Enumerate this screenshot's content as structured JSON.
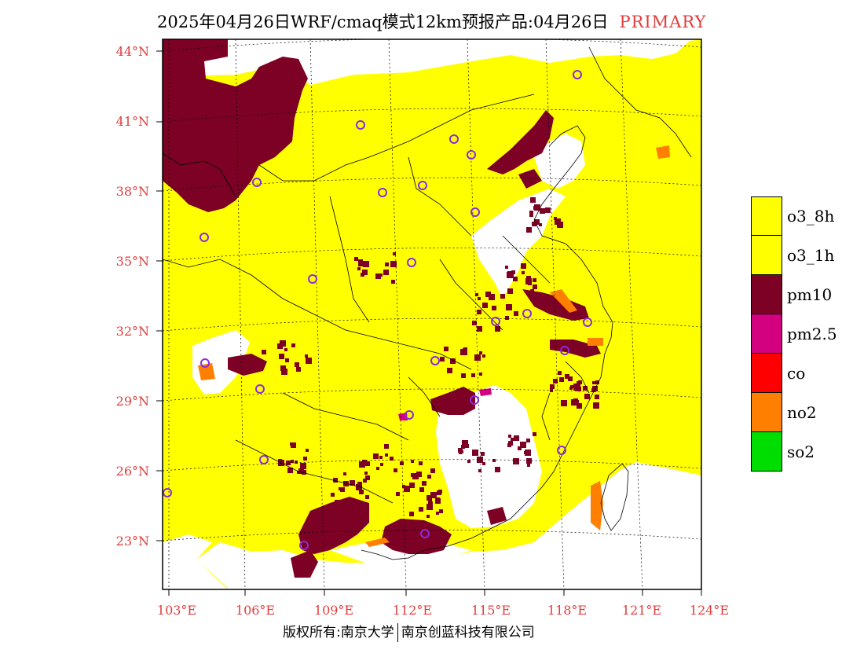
{
  "header": {
    "title": "2025年04月26日WRF/cmaq模式12km预报产品:04月26日",
    "tag": "PRIMARY"
  },
  "map": {
    "lat_labels": [
      "44°N",
      "41°N",
      "38°N",
      "35°N",
      "32°N",
      "29°N",
      "26°N",
      "23°N"
    ],
    "lon_labels": [
      "103°E",
      "106°E",
      "109°E",
      "112°E",
      "115°E",
      "118°E",
      "121°E",
      "124°E"
    ],
    "colors": {
      "o3": "#ffff00",
      "pm10": "#7d0025",
      "pm25": "#d3007f",
      "co": "#ff0000",
      "no2": "#ff7f00",
      "so2": "#00dd00",
      "clean": "#ffffff",
      "axis_label": "#e23c3c",
      "city_marker": "#8a2be2"
    },
    "city_marker_icon": "circle-icon"
  },
  "legend": {
    "items": [
      {
        "label": "o3_8h",
        "color": "#ffff00"
      },
      {
        "label": "o3_1h",
        "color": "#ffff00"
      },
      {
        "label": "pm10",
        "color": "#7d0025"
      },
      {
        "label": "pm2.5",
        "color": "#d3007f"
      },
      {
        "label": "co",
        "color": "#ff0000"
      },
      {
        "label": "no2",
        "color": "#ff7f00"
      },
      {
        "label": "so2",
        "color": "#00dd00"
      }
    ]
  },
  "footer": {
    "left": "版权所有:南京大学",
    "right": "南京创蓝科技有限公司"
  }
}
